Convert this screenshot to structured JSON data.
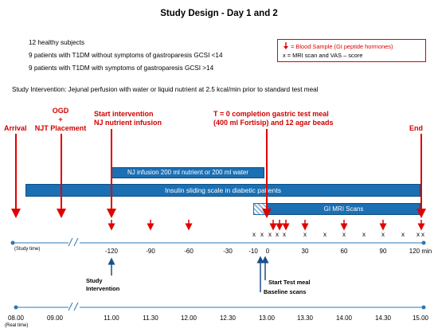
{
  "title": "Study Design - Day 1 and 2",
  "subjects": [
    "12 healthy subjects",
    "9 patients with T1DM without symptoms of gastroparesis GCSI <14",
    "9 patients with T1DM with symptoms of gastroparesis  GCSI >14"
  ],
  "legend": {
    "blood_sample": "= Blood Sample (GI peptide hormones)",
    "mri_marker": "x",
    "mri_scan": "= MRI scan and VAS – score"
  },
  "intervention": "Study Intervention: Jejunal perfusion with water or liquid nutrient at 2.5 kcal/min prior to standard test meal",
  "events": {
    "arrival": "Arrival",
    "ogd": [
      "OGD",
      "+",
      "NJT Placement"
    ],
    "start_intervention": [
      "Start intervention",
      "NJ nutrient infusion"
    ],
    "t0": [
      "T = 0 completion gastric test meal",
      "(400 ml Fortisip) and 12 agar beads"
    ],
    "end": "End"
  },
  "bars": {
    "nj_infusion": "NJ infusion 200 ml nutrient or 200 ml water",
    "insulin": "Insulin sliding scale in diabetic patients",
    "gi_mri": "GI MRI Scans"
  },
  "study_time": {
    "label": "(Study time)",
    "ticks": [
      "-120",
      "-90",
      "-60",
      "-30",
      "-10",
      "0",
      "30",
      "60",
      "90",
      "120 min"
    ]
  },
  "annotations": {
    "study_intervention": [
      "Study",
      "Intervention"
    ],
    "start_test_meal": "Start Test meal",
    "baseline_scans": "Baseline scans"
  },
  "real_time": {
    "label": "(Real time)",
    "ticks": [
      "08.00",
      "09.00",
      "11.00",
      "11.30",
      "12.00",
      "12.30",
      "13.00",
      "13.30",
      "14.00",
      "14.30",
      "15.00"
    ]
  },
  "colors": {
    "accent_red": "#e00000",
    "bar_blue": "#1b6fb3",
    "timeline": "#2b77b5"
  }
}
